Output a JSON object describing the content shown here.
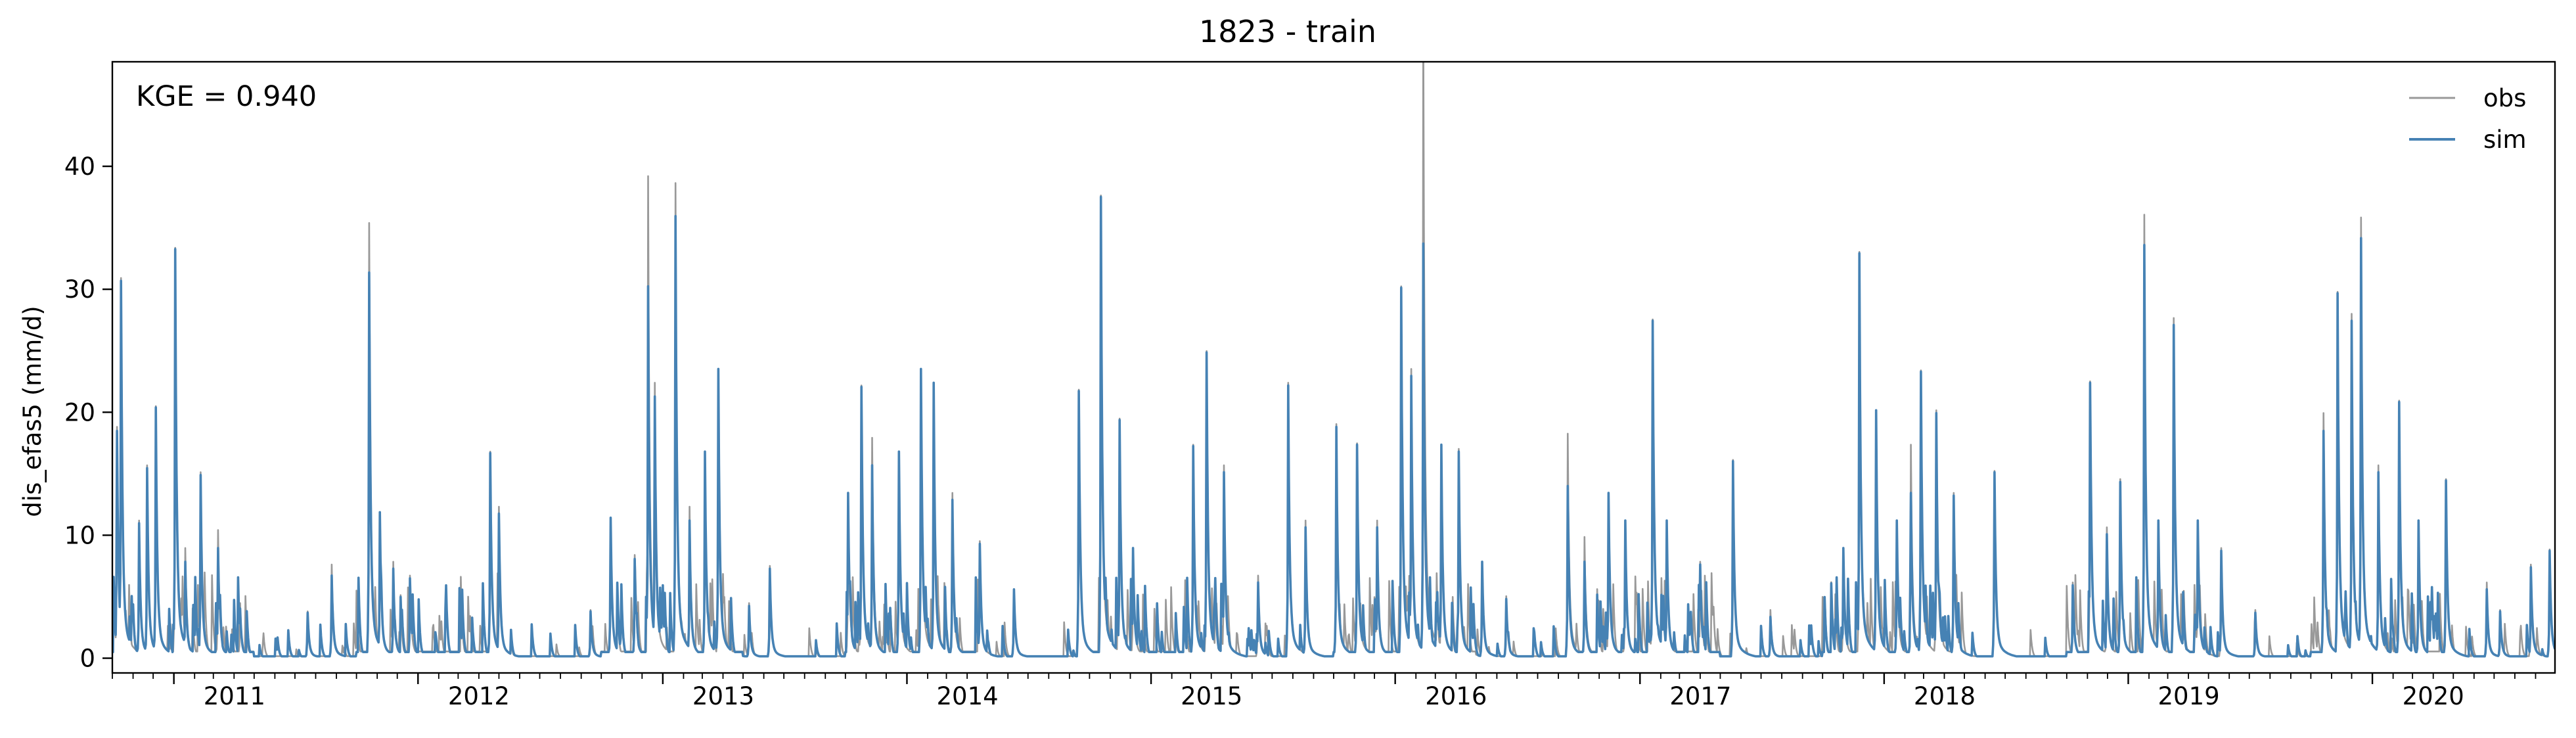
{
  "chart_data": {
    "type": "line",
    "title": "1823 - train",
    "xlabel": "",
    "ylabel": "dis_efas5 (mm/d)",
    "annotation": "KGE = 0.940",
    "x_start": "2010-10-01",
    "x_end": "2020-09-30",
    "xlim": [
      "2010-10-01",
      "2020-09-30"
    ],
    "ylim": [
      -1.2,
      48.5
    ],
    "x_tick_labels": [
      "2011",
      "2012",
      "2013",
      "2014",
      "2015",
      "2016",
      "2017",
      "2018",
      "2019",
      "2020"
    ],
    "y_ticks": [
      0,
      10,
      20,
      30,
      40
    ],
    "grid": false,
    "legend_position": "top-right",
    "series": [
      {
        "name": "obs",
        "color": "#999999",
        "peaks": [
          [
            "2010-10-08",
            16.8
          ],
          [
            "2010-10-14",
            27.6
          ],
          [
            "2010-11-10",
            10.0
          ],
          [
            "2010-11-22",
            14.0
          ],
          [
            "2010-12-05",
            18.3
          ],
          [
            "2011-01-03",
            29.8
          ],
          [
            "2011-01-18",
            8.0
          ],
          [
            "2011-02-10",
            13.5
          ],
          [
            "2011-03-08",
            9.3
          ],
          [
            "2011-04-10",
            4.0
          ],
          [
            "2011-07-20",
            3.4
          ],
          [
            "2011-08-25",
            6.8
          ],
          [
            "2011-10-20",
            31.6
          ],
          [
            "2011-11-05",
            10.5
          ],
          [
            "2011-11-25",
            7.0
          ],
          [
            "2011-12-20",
            6.0
          ],
          [
            "2012-04-18",
            15.0
          ],
          [
            "2012-05-01",
            11.0
          ],
          [
            "2012-09-15",
            3.5
          ],
          [
            "2012-10-15",
            10.0
          ],
          [
            "2012-11-20",
            7.5
          ],
          [
            "2012-12-10",
            35.0
          ],
          [
            "2012-12-20",
            20.0
          ],
          [
            "2013-01-20",
            34.5
          ],
          [
            "2013-02-10",
            11.0
          ],
          [
            "2013-03-05",
            15.0
          ],
          [
            "2013-03-25",
            21.0
          ],
          [
            "2013-05-10",
            4.0
          ],
          [
            "2013-06-10",
            6.7
          ],
          [
            "2013-10-05",
            12.0
          ],
          [
            "2013-10-25",
            19.8
          ],
          [
            "2013-11-10",
            16.0
          ],
          [
            "2013-12-20",
            15.0
          ],
          [
            "2014-01-22",
            21.0
          ],
          [
            "2014-02-10",
            20.0
          ],
          [
            "2014-03-10",
            12.0
          ],
          [
            "2014-04-20",
            8.5
          ],
          [
            "2014-06-10",
            5.0
          ],
          [
            "2014-09-15",
            19.5
          ],
          [
            "2014-10-18",
            33.6
          ],
          [
            "2014-11-15",
            17.4
          ],
          [
            "2014-12-05",
            8.0
          ],
          [
            "2015-03-05",
            15.5
          ],
          [
            "2015-03-25",
            22.3
          ],
          [
            "2015-04-20",
            14.0
          ],
          [
            "2015-06-10",
            6.0
          ],
          [
            "2015-07-25",
            20.0
          ],
          [
            "2015-08-20",
            10.0
          ],
          [
            "2015-10-05",
            17.0
          ],
          [
            "2015-11-05",
            15.6
          ],
          [
            "2015-12-05",
            10.0
          ],
          [
            "2016-01-10",
            27.0
          ],
          [
            "2016-01-25",
            21.0
          ],
          [
            "2016-02-12",
            46.7
          ],
          [
            "2016-03-10",
            15.5
          ],
          [
            "2016-04-05",
            15.2
          ],
          [
            "2016-05-10",
            7.0
          ],
          [
            "2016-06-15",
            4.5
          ],
          [
            "2016-09-15",
            16.3
          ],
          [
            "2016-10-10",
            8.8
          ],
          [
            "2016-11-15",
            12.0
          ],
          [
            "2016-12-10",
            10.0
          ],
          [
            "2017-01-20",
            24.6
          ],
          [
            "2017-02-10",
            10.0
          ],
          [
            "2017-04-01",
            7.0
          ],
          [
            "2017-05-20",
            14.4
          ],
          [
            "2017-07-15",
            3.5
          ],
          [
            "2017-11-01",
            8.0
          ],
          [
            "2017-11-25",
            29.5
          ],
          [
            "2017-12-20",
            18.0
          ],
          [
            "2018-01-20",
            10.0
          ],
          [
            "2018-02-10",
            15.5
          ],
          [
            "2018-02-25",
            20.9
          ],
          [
            "2018-03-20",
            18.0
          ],
          [
            "2018-04-15",
            12.0
          ],
          [
            "2018-06-15",
            13.6
          ],
          [
            "2018-10-10",
            5.5
          ],
          [
            "2018-11-05",
            20.1
          ],
          [
            "2018-11-30",
            9.5
          ],
          [
            "2018-12-20",
            13.0
          ],
          [
            "2019-01-25",
            32.2
          ],
          [
            "2019-02-15",
            10.0
          ],
          [
            "2019-03-10",
            24.7
          ],
          [
            "2019-04-15",
            10.0
          ],
          [
            "2019-05-20",
            8.0
          ],
          [
            "2019-07-10",
            3.5
          ],
          [
            "2019-10-20",
            17.8
          ],
          [
            "2019-11-10",
            26.6
          ],
          [
            "2019-12-01",
            25.0
          ],
          [
            "2019-12-15",
            32.0
          ],
          [
            "2020-01-10",
            14.0
          ],
          [
            "2020-02-10",
            18.7
          ],
          [
            "2020-03-10",
            10.0
          ],
          [
            "2020-04-20",
            13.0
          ],
          [
            "2020-06-20",
            5.5
          ],
          [
            "2020-07-10",
            3.5
          ],
          [
            "2020-08-25",
            6.8
          ],
          [
            "2020-09-22",
            7.9
          ]
        ]
      },
      {
        "name": "sim",
        "color": "#4682b4",
        "peaks": [
          [
            "2010-10-08",
            16.5
          ],
          [
            "2010-10-14",
            27.4
          ],
          [
            "2010-11-10",
            9.8
          ],
          [
            "2010-11-22",
            13.8
          ],
          [
            "2010-12-05",
            18.2
          ],
          [
            "2011-01-03",
            29.7
          ],
          [
            "2011-01-18",
            7.0
          ],
          [
            "2011-02-10",
            13.3
          ],
          [
            "2011-03-08",
            8.0
          ],
          [
            "2011-04-10",
            3.6
          ],
          [
            "2011-07-20",
            3.3
          ],
          [
            "2011-08-25",
            6.0
          ],
          [
            "2011-10-20",
            28.0
          ],
          [
            "2011-11-05",
            10.6
          ],
          [
            "2011-11-25",
            6.5
          ],
          [
            "2011-12-20",
            5.8
          ],
          [
            "2012-04-18",
            14.9
          ],
          [
            "2012-05-01",
            10.5
          ],
          [
            "2012-09-15",
            3.4
          ],
          [
            "2012-10-15",
            10.2
          ],
          [
            "2012-11-20",
            7.2
          ],
          [
            "2012-12-10",
            27.0
          ],
          [
            "2012-12-20",
            19.0
          ],
          [
            "2013-01-20",
            32.1
          ],
          [
            "2013-02-10",
            10.0
          ],
          [
            "2013-03-05",
            15.0
          ],
          [
            "2013-03-25",
            21.0
          ],
          [
            "2013-05-10",
            3.8
          ],
          [
            "2013-06-10",
            6.5
          ],
          [
            "2013-10-05",
            12.0
          ],
          [
            "2013-10-25",
            19.7
          ],
          [
            "2013-11-10",
            14.0
          ],
          [
            "2013-12-20",
            15.0
          ],
          [
            "2014-01-22",
            21.0
          ],
          [
            "2014-02-10",
            20.0
          ],
          [
            "2014-03-10",
            11.5
          ],
          [
            "2014-04-20",
            8.3
          ],
          [
            "2014-06-10",
            5.0
          ],
          [
            "2014-09-15",
            19.4
          ],
          [
            "2014-10-18",
            33.5
          ],
          [
            "2014-11-15",
            17.3
          ],
          [
            "2014-12-05",
            8.0
          ],
          [
            "2015-03-05",
            15.4
          ],
          [
            "2015-03-25",
            22.2
          ],
          [
            "2015-04-20",
            13.5
          ],
          [
            "2015-06-10",
            5.5
          ],
          [
            "2015-07-25",
            19.8
          ],
          [
            "2015-08-20",
            9.5
          ],
          [
            "2015-10-05",
            16.8
          ],
          [
            "2015-11-05",
            15.5
          ],
          [
            "2015-12-05",
            9.5
          ],
          [
            "2016-01-10",
            26.9
          ],
          [
            "2016-01-25",
            20.5
          ],
          [
            "2016-02-12",
            30.1
          ],
          [
            "2016-03-10",
            15.5
          ],
          [
            "2016-04-05",
            15.0
          ],
          [
            "2016-05-10",
            7.0
          ],
          [
            "2016-06-15",
            4.3
          ],
          [
            "2016-09-15",
            12.5
          ],
          [
            "2016-10-10",
            7.0
          ],
          [
            "2016-11-15",
            12.0
          ],
          [
            "2016-12-10",
            10.0
          ],
          [
            "2017-01-20",
            24.5
          ],
          [
            "2017-02-10",
            10.0
          ],
          [
            "2017-04-01",
            6.8
          ],
          [
            "2017-05-20",
            14.3
          ],
          [
            "2017-07-15",
            3.0
          ],
          [
            "2017-11-01",
            8.0
          ],
          [
            "2017-11-25",
            29.4
          ],
          [
            "2017-12-20",
            18.0
          ],
          [
            "2018-01-20",
            10.0
          ],
          [
            "2018-02-10",
            12.0
          ],
          [
            "2018-02-25",
            20.8
          ],
          [
            "2018-03-20",
            17.8
          ],
          [
            "2018-04-15",
            11.8
          ],
          [
            "2018-06-15",
            13.5
          ],
          [
            "2018-10-10",
            5.3
          ],
          [
            "2018-11-05",
            20.0
          ],
          [
            "2018-11-30",
            9.0
          ],
          [
            "2018-12-20",
            12.8
          ],
          [
            "2019-01-25",
            30.0
          ],
          [
            "2019-02-15",
            10.0
          ],
          [
            "2019-03-10",
            24.2
          ],
          [
            "2019-04-15",
            10.0
          ],
          [
            "2019-05-20",
            7.8
          ],
          [
            "2019-07-10",
            3.3
          ],
          [
            "2019-10-20",
            16.5
          ],
          [
            "2019-11-10",
            26.5
          ],
          [
            "2019-12-01",
            24.5
          ],
          [
            "2019-12-15",
            30.5
          ],
          [
            "2020-01-10",
            13.5
          ],
          [
            "2020-02-10",
            18.6
          ],
          [
            "2020-03-10",
            10.0
          ],
          [
            "2020-04-20",
            12.9
          ],
          [
            "2020-06-20",
            5.0
          ],
          [
            "2020-07-10",
            3.4
          ],
          [
            "2020-08-25",
            6.6
          ],
          [
            "2020-09-22",
            7.8
          ]
        ]
      }
    ]
  }
}
